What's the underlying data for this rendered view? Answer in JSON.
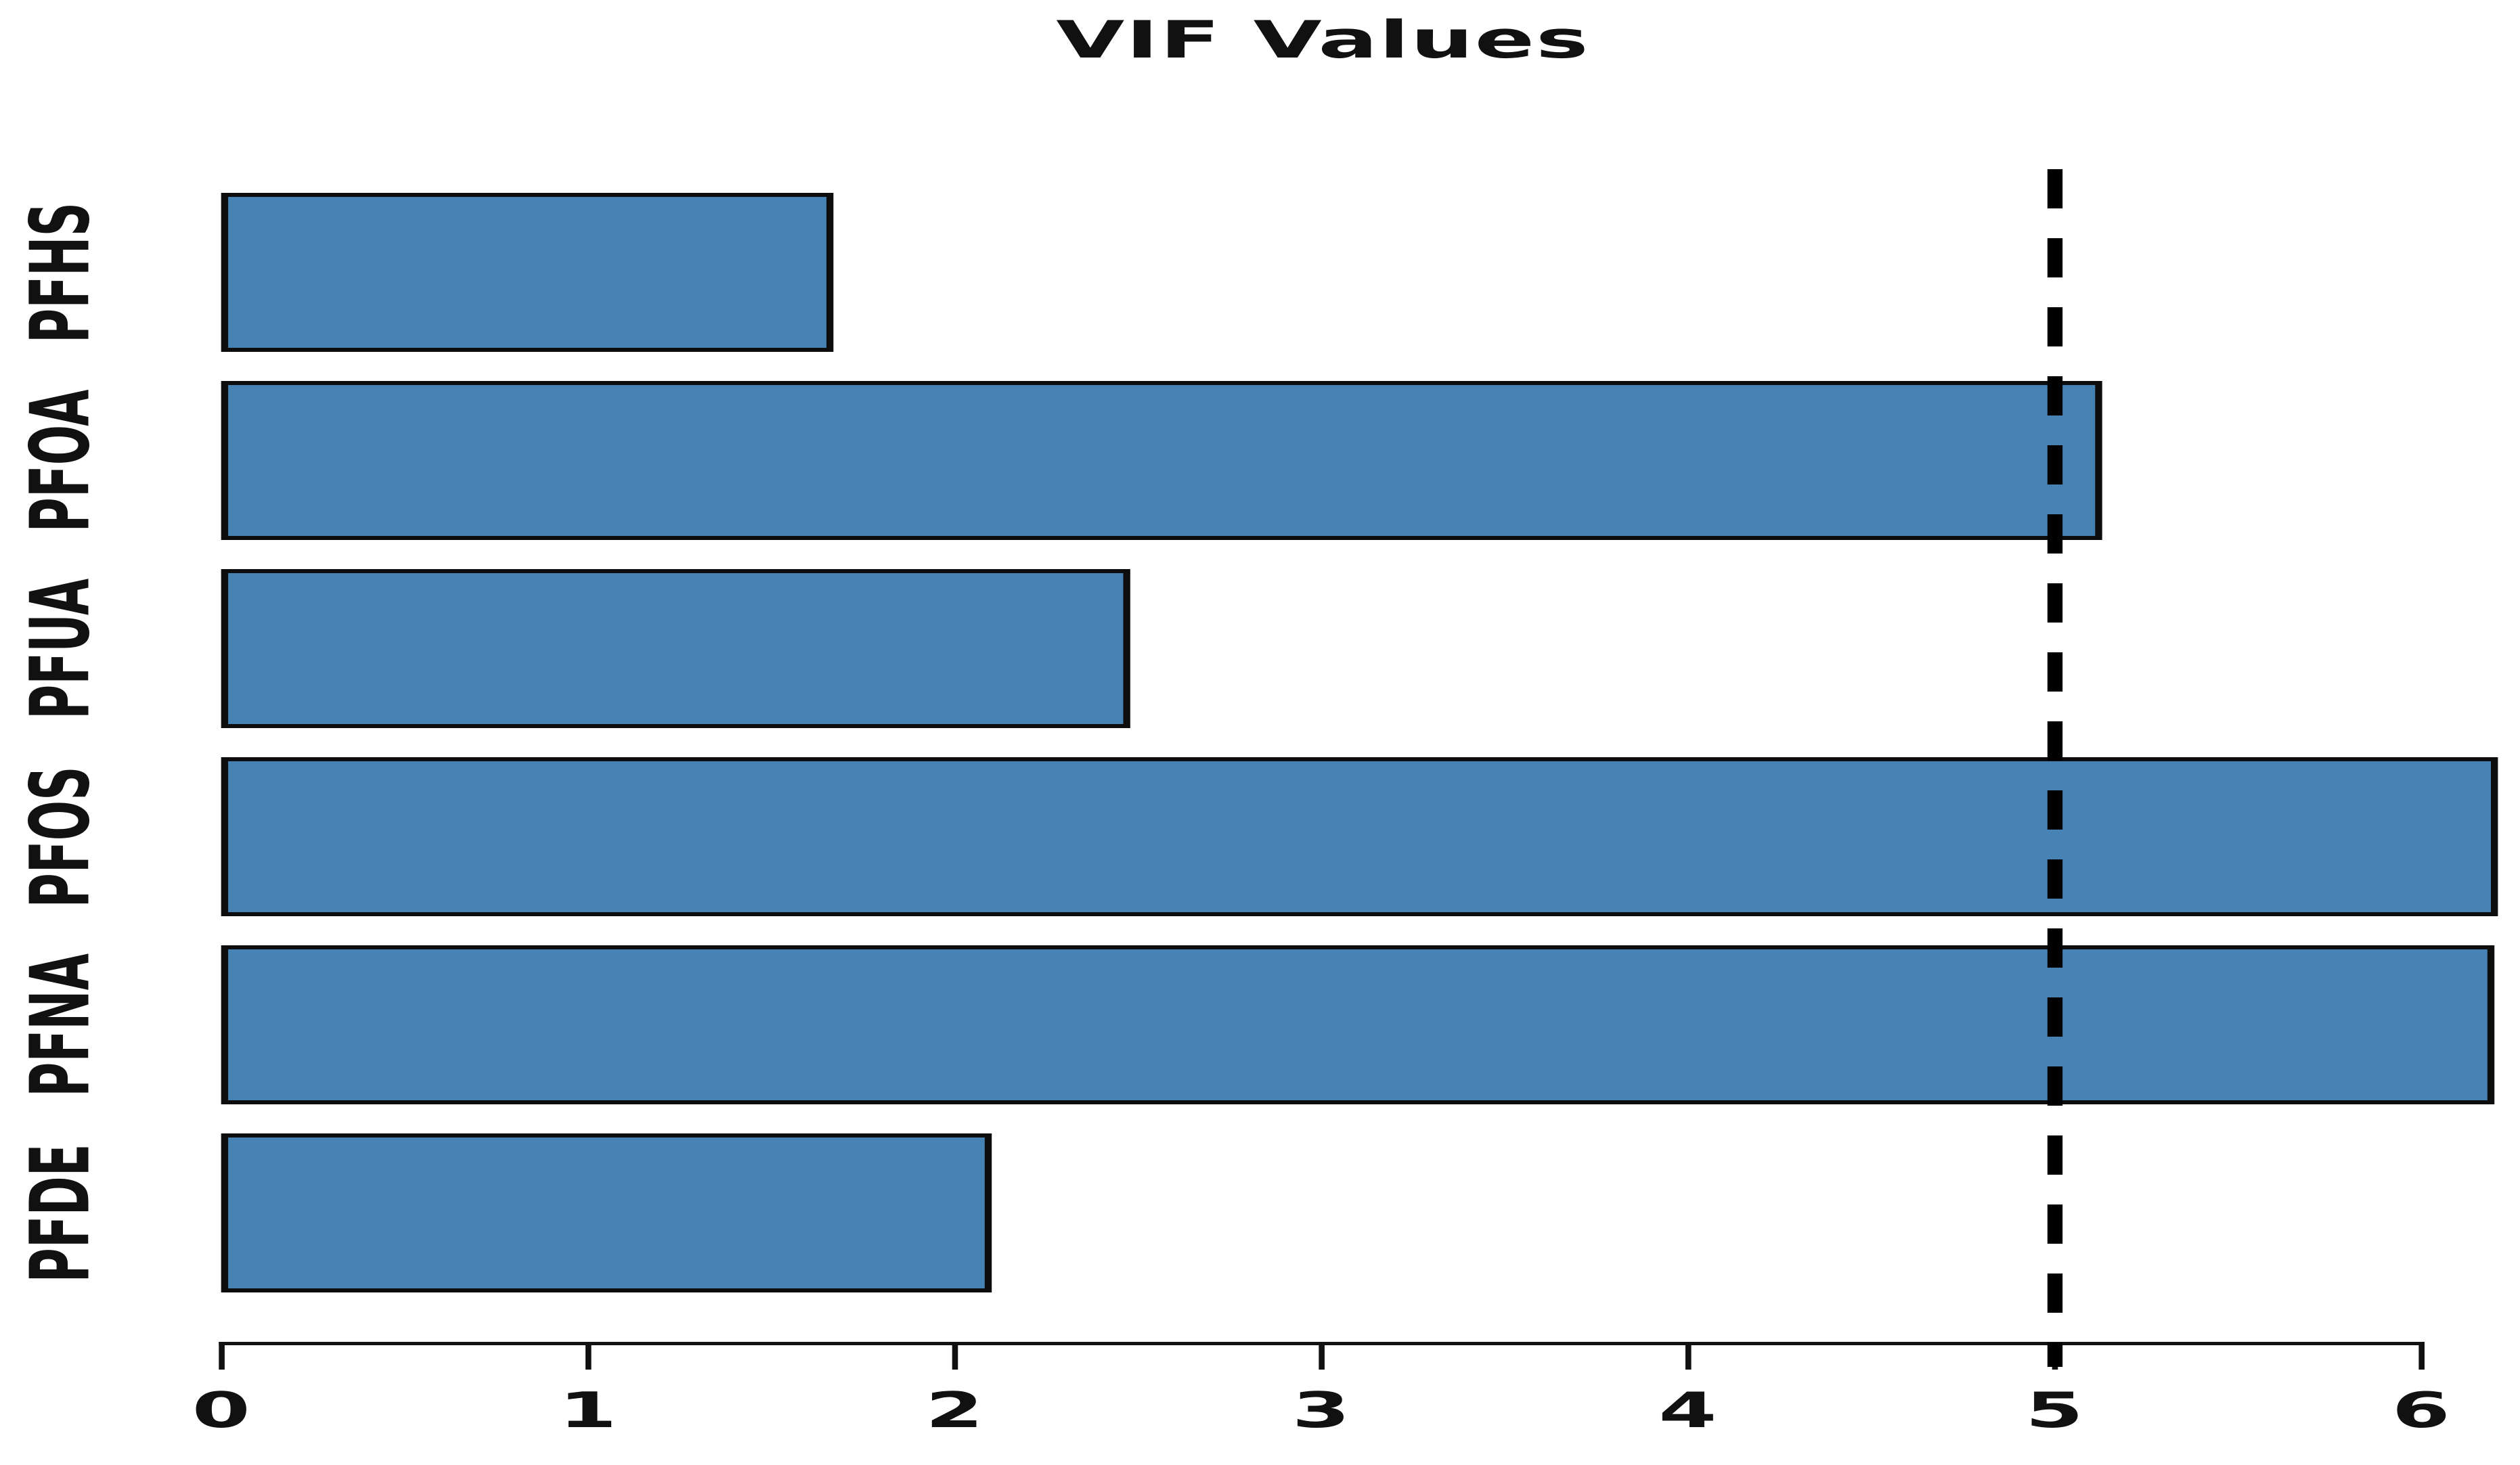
{
  "chart_data": {
    "type": "bar",
    "orientation": "horizontal",
    "title": "VIF Values",
    "categories": [
      "PFHS",
      "PFOA",
      "PFUA",
      "PFOS",
      "PFNA",
      "PFDE"
    ],
    "values": [
      1.67,
      5.13,
      2.48,
      6.21,
      6.2,
      2.1
    ],
    "x_ticks": [
      0,
      1,
      2,
      3,
      4,
      5,
      6
    ],
    "xlim": [
      0,
      6.27
    ],
    "xlabel": "",
    "ylabel": "",
    "grid": false,
    "legend": false,
    "threshold": {
      "value": 5,
      "style": "dashed"
    },
    "colors": {
      "bar_fill": "#4682B4",
      "bar_border": "#0d0d0d",
      "axis": "#111111",
      "threshold_line": "#000000",
      "text": "#111111",
      "background": "#ffffff"
    }
  }
}
